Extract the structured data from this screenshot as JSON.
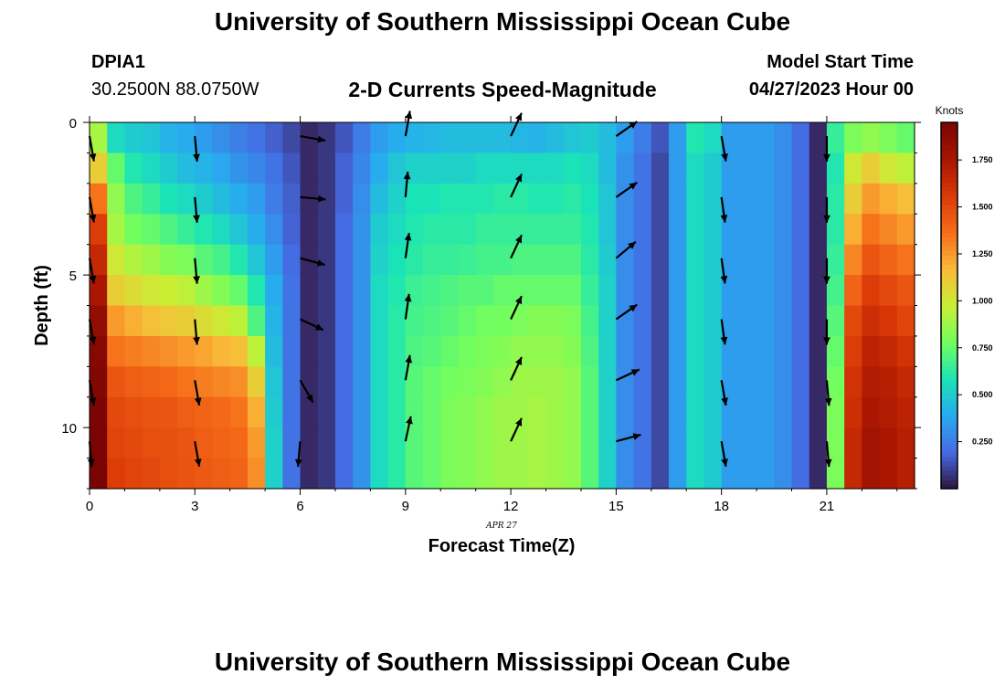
{
  "header": {
    "title": "University of Southern Mississippi Ocean Cube",
    "station": "DPIA1",
    "coords": "30.2500N  88.0750W",
    "plot_title": "2-D Currents Speed-Magnitude",
    "model_start_label": "Model Start Time",
    "model_start_value": "04/27/2023 Hour 00"
  },
  "footer": {
    "title": "University of Southern Mississippi Ocean Cube"
  },
  "chart_data": {
    "type": "heatmap",
    "xlabel": "Forecast Time(Z)",
    "ylabel": "Depth (ft)",
    "date_label": "APR 27",
    "x_ticks": [
      0,
      3,
      6,
      9,
      12,
      15,
      18,
      21
    ],
    "y_ticks": [
      0,
      5,
      10
    ],
    "xlim": [
      0,
      23.5
    ],
    "ylim": [
      12,
      0
    ],
    "colorbar": {
      "title": "Knots",
      "ticks": [
        "0.250",
        "0.500",
        "0.750",
        "1.000",
        "1.250",
        "1.500",
        "1.750"
      ],
      "range": [
        0,
        1.95
      ]
    },
    "time_hours": [
      0,
      0.5,
      1,
      1.5,
      2,
      2.5,
      3,
      3.5,
      4,
      4.5,
      5,
      5.5,
      6,
      6.5,
      7,
      7.5,
      8,
      8.5,
      9,
      9.5,
      10,
      10.5,
      11,
      11.5,
      12,
      12.5,
      13,
      13.5,
      14,
      14.5,
      15,
      15.5,
      16,
      16.5,
      17,
      17.5,
      18,
      18.5,
      19,
      19.5,
      20,
      20.5,
      21,
      21.5,
      22,
      22.5,
      23
    ],
    "depth_ft": [
      0,
      1,
      2,
      3,
      4,
      5,
      6,
      7,
      8,
      9,
      10,
      11
    ],
    "speed_knots": [
      [
        0.9,
        0.55,
        0.5,
        0.48,
        0.42,
        0.4,
        0.35,
        0.3,
        0.26,
        0.22,
        0.17,
        0.12,
        0.05,
        0.08,
        0.15,
        0.25,
        0.35,
        0.4,
        0.42,
        0.43,
        0.45,
        0.45,
        0.45,
        0.45,
        0.43,
        0.42,
        0.45,
        0.48,
        0.5,
        0.45,
        0.35,
        0.25,
        0.15,
        0.35,
        0.6,
        0.55,
        0.35,
        0.35,
        0.35,
        0.3,
        0.2,
        0.05,
        0.65,
        0.8,
        0.85,
        0.8,
        0.75
      ],
      [
        1.1,
        0.75,
        0.6,
        0.55,
        0.5,
        0.45,
        0.42,
        0.38,
        0.32,
        0.28,
        0.22,
        0.15,
        0.05,
        0.08,
        0.18,
        0.28,
        0.4,
        0.48,
        0.52,
        0.52,
        0.52,
        0.52,
        0.55,
        0.55,
        0.55,
        0.55,
        0.55,
        0.58,
        0.55,
        0.45,
        0.32,
        0.22,
        0.12,
        0.35,
        0.55,
        0.5,
        0.35,
        0.35,
        0.35,
        0.3,
        0.2,
        0.05,
        0.6,
        1.0,
        1.1,
        1.0,
        0.95
      ],
      [
        1.35,
        0.85,
        0.7,
        0.65,
        0.58,
        0.55,
        0.5,
        0.45,
        0.4,
        0.35,
        0.25,
        0.17,
        0.05,
        0.08,
        0.18,
        0.3,
        0.45,
        0.52,
        0.58,
        0.58,
        0.6,
        0.6,
        0.6,
        0.62,
        0.62,
        0.6,
        0.6,
        0.62,
        0.58,
        0.48,
        0.3,
        0.22,
        0.12,
        0.35,
        0.55,
        0.5,
        0.35,
        0.35,
        0.35,
        0.3,
        0.2,
        0.05,
        0.62,
        1.1,
        1.25,
        1.2,
        1.15
      ],
      [
        1.55,
        0.9,
        0.78,
        0.75,
        0.7,
        0.65,
        0.6,
        0.55,
        0.48,
        0.4,
        0.3,
        0.18,
        0.05,
        0.08,
        0.2,
        0.32,
        0.5,
        0.55,
        0.6,
        0.62,
        0.62,
        0.62,
        0.65,
        0.65,
        0.65,
        0.65,
        0.65,
        0.65,
        0.6,
        0.48,
        0.3,
        0.22,
        0.12,
        0.35,
        0.55,
        0.5,
        0.35,
        0.35,
        0.35,
        0.3,
        0.2,
        0.05,
        0.62,
        1.2,
        1.35,
        1.3,
        1.25
      ],
      [
        1.65,
        1.0,
        0.92,
        0.88,
        0.82,
        0.8,
        0.72,
        0.68,
        0.6,
        0.48,
        0.35,
        0.2,
        0.05,
        0.08,
        0.2,
        0.32,
        0.52,
        0.58,
        0.62,
        0.65,
        0.65,
        0.66,
        0.68,
        0.68,
        0.7,
        0.7,
        0.7,
        0.7,
        0.62,
        0.5,
        0.3,
        0.22,
        0.12,
        0.35,
        0.55,
        0.5,
        0.35,
        0.35,
        0.35,
        0.3,
        0.2,
        0.05,
        0.65,
        1.3,
        1.45,
        1.4,
        1.35
      ],
      [
        1.75,
        1.1,
        1.05,
        1.0,
        0.98,
        0.95,
        0.88,
        0.82,
        0.75,
        0.6,
        0.4,
        0.22,
        0.05,
        0.08,
        0.2,
        0.32,
        0.55,
        0.6,
        0.66,
        0.68,
        0.7,
        0.72,
        0.72,
        0.75,
        0.75,
        0.75,
        0.75,
        0.75,
        0.65,
        0.52,
        0.3,
        0.22,
        0.12,
        0.35,
        0.55,
        0.5,
        0.35,
        0.35,
        0.35,
        0.3,
        0.2,
        0.05,
        0.68,
        1.4,
        1.55,
        1.5,
        1.45
      ],
      [
        1.85,
        1.25,
        1.2,
        1.15,
        1.12,
        1.1,
        1.05,
        1.0,
        0.95,
        0.7,
        0.42,
        0.22,
        0.05,
        0.08,
        0.2,
        0.32,
        0.55,
        0.62,
        0.68,
        0.7,
        0.72,
        0.75,
        0.78,
        0.78,
        0.8,
        0.82,
        0.82,
        0.8,
        0.68,
        0.52,
        0.3,
        0.22,
        0.12,
        0.35,
        0.55,
        0.5,
        0.35,
        0.35,
        0.35,
        0.3,
        0.2,
        0.05,
        0.72,
        1.5,
        1.62,
        1.58,
        1.52
      ],
      [
        1.9,
        1.35,
        1.32,
        1.3,
        1.28,
        1.25,
        1.22,
        1.18,
        1.15,
        0.95,
        0.45,
        0.22,
        0.05,
        0.08,
        0.2,
        0.32,
        0.55,
        0.62,
        0.7,
        0.72,
        0.75,
        0.78,
        0.8,
        0.82,
        0.85,
        0.85,
        0.85,
        0.82,
        0.7,
        0.52,
        0.3,
        0.22,
        0.12,
        0.35,
        0.55,
        0.5,
        0.35,
        0.35,
        0.35,
        0.3,
        0.2,
        0.05,
        0.75,
        1.55,
        1.68,
        1.65,
        1.6
      ],
      [
        1.92,
        1.45,
        1.42,
        1.4,
        1.38,
        1.35,
        1.32,
        1.3,
        1.28,
        1.1,
        0.48,
        0.22,
        0.05,
        0.08,
        0.2,
        0.32,
        0.55,
        0.62,
        0.72,
        0.75,
        0.78,
        0.8,
        0.82,
        0.85,
        0.88,
        0.88,
        0.88,
        0.85,
        0.72,
        0.52,
        0.3,
        0.22,
        0.12,
        0.35,
        0.55,
        0.5,
        0.35,
        0.35,
        0.35,
        0.3,
        0.2,
        0.05,
        0.78,
        1.6,
        1.72,
        1.7,
        1.65
      ],
      [
        1.94,
        1.5,
        1.48,
        1.46,
        1.45,
        1.42,
        1.4,
        1.38,
        1.35,
        1.2,
        0.5,
        0.22,
        0.05,
        0.08,
        0.2,
        0.32,
        0.55,
        0.62,
        0.72,
        0.75,
        0.8,
        0.82,
        0.85,
        0.88,
        0.88,
        0.9,
        0.88,
        0.85,
        0.72,
        0.52,
        0.3,
        0.22,
        0.12,
        0.35,
        0.55,
        0.5,
        0.35,
        0.35,
        0.35,
        0.3,
        0.2,
        0.05,
        0.8,
        1.62,
        1.75,
        1.72,
        1.68
      ],
      [
        1.95,
        1.52,
        1.5,
        1.48,
        1.47,
        1.45,
        1.42,
        1.4,
        1.38,
        1.25,
        0.52,
        0.22,
        0.05,
        0.08,
        0.2,
        0.32,
        0.55,
        0.62,
        0.72,
        0.75,
        0.8,
        0.82,
        0.85,
        0.88,
        0.88,
        0.9,
        0.88,
        0.85,
        0.72,
        0.52,
        0.3,
        0.22,
        0.12,
        0.35,
        0.55,
        0.5,
        0.35,
        0.35,
        0.35,
        0.3,
        0.2,
        0.05,
        0.8,
        1.65,
        1.78,
        1.75,
        1.7
      ],
      [
        1.95,
        1.55,
        1.52,
        1.5,
        1.48,
        1.46,
        1.44,
        1.42,
        1.4,
        1.28,
        0.52,
        0.22,
        0.05,
        0.08,
        0.2,
        0.32,
        0.55,
        0.62,
        0.72,
        0.75,
        0.8,
        0.82,
        0.85,
        0.88,
        0.88,
        0.9,
        0.88,
        0.85,
        0.72,
        0.52,
        0.3,
        0.22,
        0.12,
        0.35,
        0.55,
        0.5,
        0.35,
        0.35,
        0.35,
        0.3,
        0.2,
        0.05,
        0.8,
        1.65,
        1.78,
        1.75,
        1.7
      ]
    ],
    "vector_times": [
      0,
      3,
      6,
      9,
      12,
      15,
      18,
      21
    ],
    "vector_depths": [
      0,
      2,
      4,
      6,
      8,
      10
    ],
    "vector_angles_deg": [
      [
        80,
        85,
        10,
        -80,
        -65,
        -35,
        80,
        90
      ],
      [
        80,
        85,
        5,
        -85,
        -65,
        -35,
        82,
        90
      ],
      [
        80,
        85,
        15,
        -82,
        -65,
        -40,
        82,
        90
      ],
      [
        80,
        85,
        25,
        -82,
        -65,
        -35,
        82,
        90
      ],
      [
        80,
        80,
        60,
        -80,
        -65,
        -25,
        80,
        85
      ],
      [
        85,
        80,
        95,
        -78,
        -65,
        -15,
        80,
        85
      ]
    ]
  }
}
